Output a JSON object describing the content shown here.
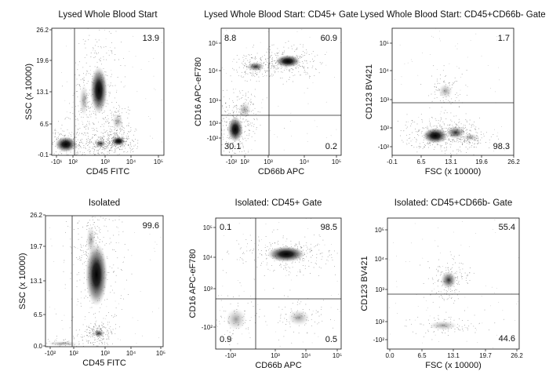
{
  "chart_data": [
    {
      "type": "scatter",
      "title": "Lysed Whole Blood Start",
      "xlabel": "CD45 FITC",
      "ylabel": "SSC (x 10000)",
      "xscale": "biexponential",
      "yscale": "linear",
      "xticks": [
        "-10¹",
        "10²",
        "10³",
        "10⁴",
        "10⁵"
      ],
      "yticks": [
        "-0.1",
        "6.5",
        "13.1",
        "19.6",
        "26.2"
      ],
      "gates": {
        "vertical_at": "10²"
      },
      "gate_values": [
        {
          "quadrant": "top-right",
          "value": "13.9"
        }
      ],
      "populations": [
        {
          "x": "10²–10³",
          "y": 10.5,
          "density": "high"
        },
        {
          "x": "-10¹–10²",
          "y": 0.5,
          "density": "high"
        },
        {
          "x": "10³",
          "y": 0.8,
          "density": "medium"
        },
        {
          "x": "10³–10⁴",
          "y": 4.0,
          "density": "medium"
        }
      ]
    },
    {
      "type": "scatter",
      "title": "Lysed Whole Blood Start: CD45+ Gate",
      "xlabel": "CD66b APC",
      "ylabel": "CD16 APC-eF780",
      "xscale": "log",
      "yscale": "log",
      "xticks": [
        "-10²",
        "10²",
        "10³",
        "10⁴",
        "10⁵"
      ],
      "yticks": [
        "-10²",
        "10²",
        "10³",
        "10⁴",
        "10⁵"
      ],
      "gate_values": [
        {
          "quadrant": "top-left",
          "value": "8.8"
        },
        {
          "quadrant": "top-right",
          "value": "60.9"
        },
        {
          "quadrant": "bottom-left",
          "value": "30.1"
        },
        {
          "quadrant": "bottom-right",
          "value": "0.2"
        }
      ],
      "populations": [
        {
          "x": "10³–10⁴",
          "y": "10⁴",
          "density": "high"
        },
        {
          "x": "10³",
          "y": "10⁴",
          "density": "medium"
        },
        {
          "x": "10²",
          "y": "10²",
          "density": "high"
        }
      ]
    },
    {
      "type": "scatter",
      "title": "Lysed Whole Blood Start: CD45+CD66b- Gate",
      "xlabel": "FSC (x 10000)",
      "ylabel": "CD123 BV421",
      "xscale": "linear",
      "yscale": "log",
      "xticks": [
        "-0.1",
        "6.5",
        "13.1",
        "19.6",
        "26.2"
      ],
      "yticks": [
        "-10²",
        "10²",
        "10³",
        "10⁴",
        "10⁵"
      ],
      "gate_values": [
        {
          "quadrant": "top",
          "value": "1.7"
        },
        {
          "quadrant": "bottom",
          "value": "98.3"
        }
      ],
      "populations": [
        {
          "x": 9.0,
          "y": "10²",
          "density": "high"
        },
        {
          "x": 13.1,
          "y": "10³",
          "density": "low"
        }
      ]
    },
    {
      "type": "scatter",
      "title": "Isolated",
      "xlabel": "CD45 FITC",
      "ylabel": "SSC (x 10000)",
      "xscale": "biexponential",
      "yscale": "linear",
      "xticks": [
        "-10²",
        "10²",
        "10³",
        "10⁴",
        "10⁵"
      ],
      "yticks": [
        "0.0",
        "6.5",
        "13.1",
        "19.7",
        "26.2"
      ],
      "gate_values": [
        {
          "quadrant": "top-right",
          "value": "99.6"
        }
      ],
      "populations": [
        {
          "x": "10³",
          "y": 11.0,
          "density": "high"
        },
        {
          "x": "10³",
          "y": 2.5,
          "density": "low"
        }
      ]
    },
    {
      "type": "scatter",
      "title": "Isolated: CD45+ Gate",
      "xlabel": "CD66b APC",
      "ylabel": "CD16 APC-eF780",
      "xscale": "log",
      "yscale": "log",
      "xticks": [
        "-10²",
        "10³",
        "10⁴",
        "10⁵"
      ],
      "yticks": [
        "-10²",
        "10³",
        "10⁴",
        "10⁵"
      ],
      "gate_values": [
        {
          "quadrant": "top-left",
          "value": "0.1"
        },
        {
          "quadrant": "top-right",
          "value": "98.5"
        },
        {
          "quadrant": "bottom-left",
          "value": "0.9"
        },
        {
          "quadrant": "bottom-right",
          "value": "0.5"
        }
      ],
      "populations": [
        {
          "x": "10³–10⁴",
          "y": "10⁴",
          "density": "high"
        }
      ]
    },
    {
      "type": "scatter",
      "title": "Isolated: CD45+CD66b- Gate",
      "xlabel": "FSC (x 10000)",
      "ylabel": "CD123 BV421",
      "xscale": "linear",
      "yscale": "log",
      "xticks": [
        "0.0",
        "6.5",
        "13.1",
        "19.7",
        "26.2"
      ],
      "yticks": [
        "-10²",
        "10²",
        "10³",
        "10⁴",
        "10⁵"
      ],
      "gate_values": [
        {
          "quadrant": "top",
          "value": "55.4"
        },
        {
          "quadrant": "bottom",
          "value": "44.6"
        }
      ],
      "populations": [
        {
          "x": 12.0,
          "y": "10³",
          "density": "medium"
        },
        {
          "x": 11.0,
          "y": "10²",
          "density": "low"
        }
      ]
    }
  ]
}
